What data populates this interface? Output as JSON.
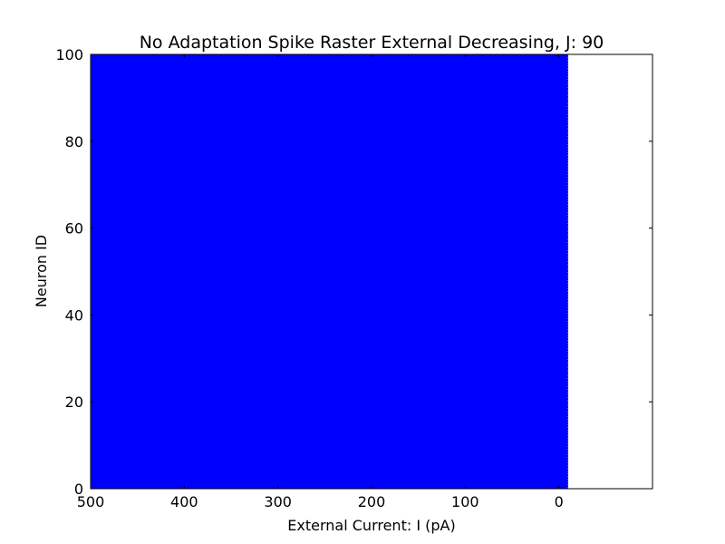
{
  "chart_data": {
    "type": "scatter",
    "subtype": "spike-raster",
    "title": "No Adaptation Spike Raster External Decreasing, J: 90",
    "xlabel": "External Current: I (pA)",
    "ylabel": "Neuron ID",
    "xlim": [
      500,
      -100
    ],
    "ylim": [
      0,
      100
    ],
    "x_inverted": true,
    "x_ticks": [
      500,
      400,
      300,
      200,
      100,
      0
    ],
    "x_tick_labels": [
      "500",
      "400",
      "300",
      "200",
      "100",
      "0"
    ],
    "y_ticks": [
      0,
      20,
      40,
      60,
      80,
      100
    ],
    "y_tick_labels": [
      "0",
      "20",
      "40",
      "60",
      "80",
      "100"
    ],
    "grid": false,
    "marker_color": "#0000ff",
    "series": [
      {
        "x_range": [
          500,
          -10
        ],
        "neuron_id_range": [
          0,
          100
        ],
        "note_density": "dense raster"
      }
    ]
  }
}
